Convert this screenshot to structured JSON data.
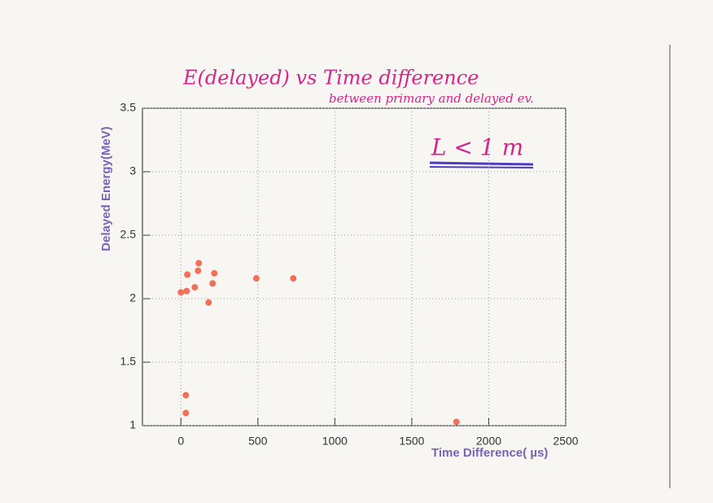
{
  "chart_data": {
    "type": "scatter",
    "title": "E(delayed) vs Time difference",
    "subtitle": "between primary and delayed ev.",
    "annotation": "L < 1 m",
    "x_label": "Time Difference( µs)",
    "y_label": "Delayed Energy(MeV)",
    "x": [
      0,
      37,
      42,
      32,
      32,
      90,
      116,
      111,
      180,
      206,
      217,
      490,
      730,
      1790
    ],
    "y": [
      2.05,
      2.06,
      2.19,
      1.24,
      1.1,
      2.09,
      2.28,
      2.22,
      1.97,
      2.12,
      2.2,
      2.16,
      2.16,
      1.03
    ],
    "color": "#f0705a",
    "xlim": [
      -250,
      2500
    ],
    "xticks": [
      0,
      500,
      1000,
      1500,
      2000,
      2500
    ],
    "ylim": [
      1,
      3.5
    ],
    "yticks": [
      1,
      1.5,
      2,
      2.5,
      3,
      3.5
    ],
    "grid": true
  }
}
